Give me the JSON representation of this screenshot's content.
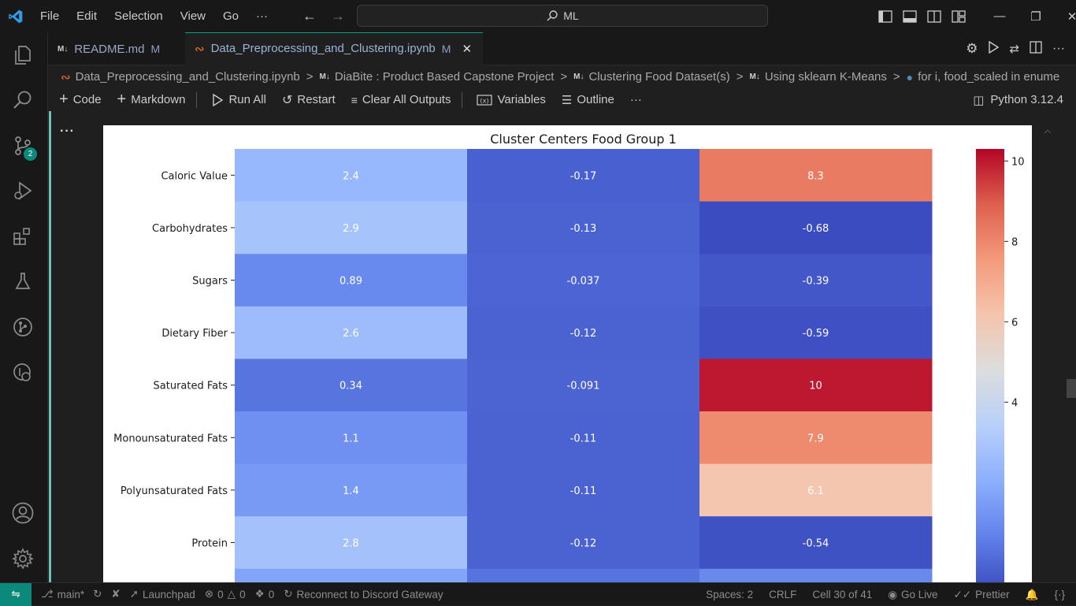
{
  "menu": [
    "File",
    "Edit",
    "Selection",
    "View",
    "Go",
    "···"
  ],
  "search": {
    "text": "ML"
  },
  "tabs": [
    {
      "label": "README.md",
      "status": "M"
    },
    {
      "label": "Data_Preprocessing_and_Clustering.ipynb",
      "status": "M"
    }
  ],
  "breadcrumb": [
    "Data_Preprocessing_and_Clustering.ipynb",
    "DiaBite : Product Based Capstone Project",
    "Clustering Food Dataset(s)",
    "Using sklearn K-Means",
    "for i, food_scaled in enume"
  ],
  "toolbar": {
    "code": "Code",
    "markdown": "Markdown",
    "run_all": "Run All",
    "restart": "Restart",
    "clear": "Clear All Outputs",
    "variables": "Variables",
    "outline": "Outline",
    "more": "···",
    "kernel": "Python 3.12.4"
  },
  "cell": {
    "more": "···"
  },
  "activity": {
    "scm_badge": "2"
  },
  "status": {
    "branch": "main*",
    "launchpad": "Launchpad",
    "errors": "0",
    "warnings": "0",
    "ports": "0",
    "discord": "Reconnect to Discord Gateway",
    "spaces": "Spaces: 2",
    "eol": "CRLF",
    "cell": "Cell 30 of 41",
    "golive": "Go Live",
    "prettier": "Prettier"
  },
  "chart_data": {
    "type": "heatmap",
    "title": "Cluster Centers Food Group 1",
    "rows": [
      "Caloric Value",
      "Carbohydrates",
      "Sugars",
      "Dietary Fiber",
      "Saturated Fats",
      "Monounsaturated Fats",
      "Polyunsaturated Fats",
      "Protein"
    ],
    "values": [
      [
        2.4,
        -0.17,
        8.3
      ],
      [
        2.9,
        -0.13,
        -0.68
      ],
      [
        0.89,
        -0.037,
        -0.39
      ],
      [
        2.6,
        -0.12,
        -0.59
      ],
      [
        0.34,
        -0.091,
        10
      ],
      [
        1.1,
        -0.11,
        7.9
      ],
      [
        1.4,
        -0.11,
        6.1
      ],
      [
        2.8,
        -0.12,
        -0.54
      ]
    ],
    "labels": [
      [
        "2.4",
        "-0.17",
        "8.3"
      ],
      [
        "2.9",
        "-0.13",
        "-0.68"
      ],
      [
        "0.89",
        "-0.037",
        "-0.39"
      ],
      [
        "2.6",
        "-0.12",
        "-0.59"
      ],
      [
        "0.34",
        "-0.091",
        "10"
      ],
      [
        "1.1",
        "-0.11",
        "7.9"
      ],
      [
        "1.4",
        "-0.11",
        "6.1"
      ],
      [
        "2.8",
        "-0.12",
        "-0.54"
      ]
    ],
    "colormap": "coolwarm",
    "vmin": -0.68,
    "vmax": 10.3,
    "colorbar_ticks": [
      "10",
      "8",
      "6",
      "4"
    ],
    "colorbar_tick_values": [
      10,
      8,
      6,
      4
    ]
  }
}
